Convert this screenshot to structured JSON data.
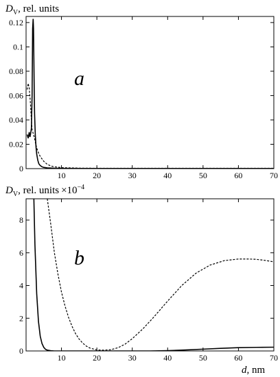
{
  "chart_data": [
    {
      "type": "line",
      "panel_label": "a",
      "ylabel": {
        "symbol": "D",
        "subscript": "V",
        "text": ", rel. units",
        "multiplier": ""
      },
      "xlabel": "",
      "xlim": [
        0,
        70
      ],
      "ylim": [
        0,
        0.125
      ],
      "xticks": [
        10,
        20,
        30,
        40,
        50,
        60,
        70
      ],
      "yticks": [
        0,
        0.02,
        0.04,
        0.06,
        0.08,
        0.1,
        0.12
      ],
      "ytick_labels": [
        "0",
        "0.02",
        "0.04",
        "0.06",
        "0.08",
        "0.1",
        "0.12"
      ],
      "grid": false,
      "series": [
        {
          "style": "solid",
          "x": [
            0.3,
            0.6,
            0.9,
            1.1,
            1.3,
            1.5,
            1.7,
            1.85,
            2.0,
            2.1,
            2.2,
            2.3,
            2.4,
            2.6,
            2.8,
            3.0,
            3.3,
            3.6,
            4.0,
            4.5,
            5.0,
            6.0,
            8.0,
            10.0,
            20.0,
            40.0,
            70.0
          ],
          "y": [
            0.028,
            0.025,
            0.03,
            0.026,
            0.029,
            0.033,
            0.06,
            0.115,
            0.123,
            0.115,
            0.09,
            0.065,
            0.045,
            0.028,
            0.018,
            0.012,
            0.007,
            0.004,
            0.0025,
            0.0015,
            0.001,
            0.0006,
            0.0003,
            0.0002,
            0.0001,
            0.0001,
            0.0001
          ]
        },
        {
          "style": "dashed",
          "x": [
            0.3,
            0.6,
            0.9,
            1.2,
            1.5,
            1.7,
            1.9,
            2.1,
            2.3,
            2.6,
            3.0,
            3.5,
            4.0,
            5.0,
            6.0,
            7.0,
            8.0,
            10.0,
            15.0,
            20.0,
            40.0,
            70.0
          ],
          "y": [
            0.065,
            0.07,
            0.066,
            0.055,
            0.04,
            0.032,
            0.03,
            0.028,
            0.026,
            0.022,
            0.017,
            0.013,
            0.01,
            0.006,
            0.0035,
            0.0022,
            0.0015,
            0.0008,
            0.0004,
            0.0003,
            0.0003,
            0.0003
          ]
        }
      ]
    },
    {
      "type": "line",
      "panel_label": "b",
      "ylabel": {
        "symbol": "D",
        "subscript": "V",
        "text": ", rel. units",
        "multiplier": "×10",
        "multiplier_exp": "−4"
      },
      "xlabel": {
        "symbol": "d",
        "text": ", nm"
      },
      "xlim": [
        0,
        70
      ],
      "ylim": [
        0,
        9.3
      ],
      "xticks": [
        10,
        20,
        30,
        40,
        50,
        60,
        70
      ],
      "yticks": [
        0,
        2,
        4,
        6,
        8
      ],
      "ytick_labels": [
        "0",
        "2",
        "4",
        "6",
        "8"
      ],
      "grid": false,
      "series": [
        {
          "style": "solid",
          "x": [
            2.2,
            2.5,
            3.0,
            3.5,
            4.0,
            4.5,
            5.0,
            5.5,
            6.0,
            7.0,
            8.0,
            10,
            15,
            20,
            25,
            30,
            35,
            40,
            45,
            50,
            55,
            60,
            65,
            70
          ],
          "y": [
            9.4,
            6.5,
            3.5,
            1.8,
            0.9,
            0.45,
            0.22,
            0.1,
            0.05,
            0.015,
            0.0,
            0.0,
            0.0,
            0.0,
            0.0,
            0.0,
            0.0,
            0.02,
            0.06,
            0.11,
            0.16,
            0.2,
            0.22,
            0.23
          ]
        },
        {
          "style": "dashed",
          "x": [
            6.0,
            7.0,
            8.0,
            9.0,
            10,
            11,
            12,
            13,
            14,
            15,
            16,
            17,
            18,
            20,
            22,
            24,
            26,
            28,
            30,
            33,
            36,
            40,
            44,
            48,
            52,
            56,
            60,
            63,
            65,
            67,
            70
          ],
          "y": [
            9.4,
            7.7,
            6.0,
            4.7,
            3.6,
            2.75,
            2.05,
            1.5,
            1.05,
            0.72,
            0.48,
            0.3,
            0.18,
            0.06,
            0.05,
            0.08,
            0.2,
            0.42,
            0.75,
            1.35,
            2.05,
            3.05,
            4.0,
            4.75,
            5.25,
            5.52,
            5.62,
            5.62,
            5.6,
            5.55,
            5.45
          ]
        }
      ]
    }
  ]
}
